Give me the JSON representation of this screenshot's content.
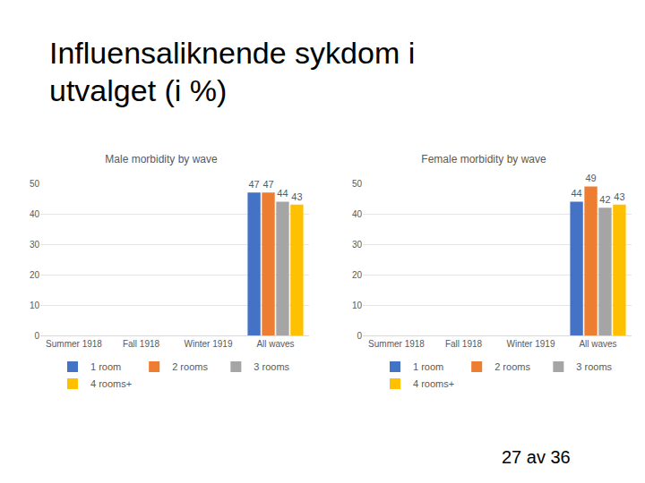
{
  "title": "Influensaliknende sykdom i utvalget (i %)",
  "page_number": "27 av 36",
  "chart_data": [
    {
      "type": "bar",
      "title": "Male morbidity by wave",
      "categories": [
        "Summer 1918",
        "Fall 1918",
        "Winter 1919",
        "All waves"
      ],
      "series": [
        {
          "name": "1 room",
          "color": "#4472c4",
          "values": [
            null,
            null,
            null,
            47
          ]
        },
        {
          "name": "2 rooms",
          "color": "#ed7d31",
          "values": [
            null,
            null,
            null,
            47
          ]
        },
        {
          "name": "3 rooms",
          "color": "#a5a5a5",
          "values": [
            null,
            null,
            null,
            44
          ]
        },
        {
          "name": "4 rooms+",
          "color": "#ffc000",
          "values": [
            null,
            null,
            null,
            43
          ]
        }
      ],
      "ylim": [
        0,
        50
      ],
      "yticks": [
        0,
        10,
        20,
        30,
        40,
        50
      ],
      "grid": true,
      "legend": "bottom",
      "data_labels": true
    },
    {
      "type": "bar",
      "title": "Female morbidity by wave",
      "categories": [
        "Summer 1918",
        "Fall 1918",
        "Winter 1919",
        "All waves"
      ],
      "series": [
        {
          "name": "1 room",
          "color": "#4472c4",
          "values": [
            null,
            null,
            null,
            44
          ]
        },
        {
          "name": "2 rooms",
          "color": "#ed7d31",
          "values": [
            null,
            null,
            null,
            49
          ]
        },
        {
          "name": "3 rooms",
          "color": "#a5a5a5",
          "values": [
            null,
            null,
            null,
            42
          ]
        },
        {
          "name": "4 rooms+",
          "color": "#ffc000",
          "values": [
            null,
            null,
            null,
            43
          ]
        }
      ],
      "ylim": [
        0,
        50
      ],
      "yticks": [
        0,
        10,
        20,
        30,
        40,
        50
      ],
      "grid": true,
      "legend": "bottom",
      "data_labels": true
    }
  ]
}
